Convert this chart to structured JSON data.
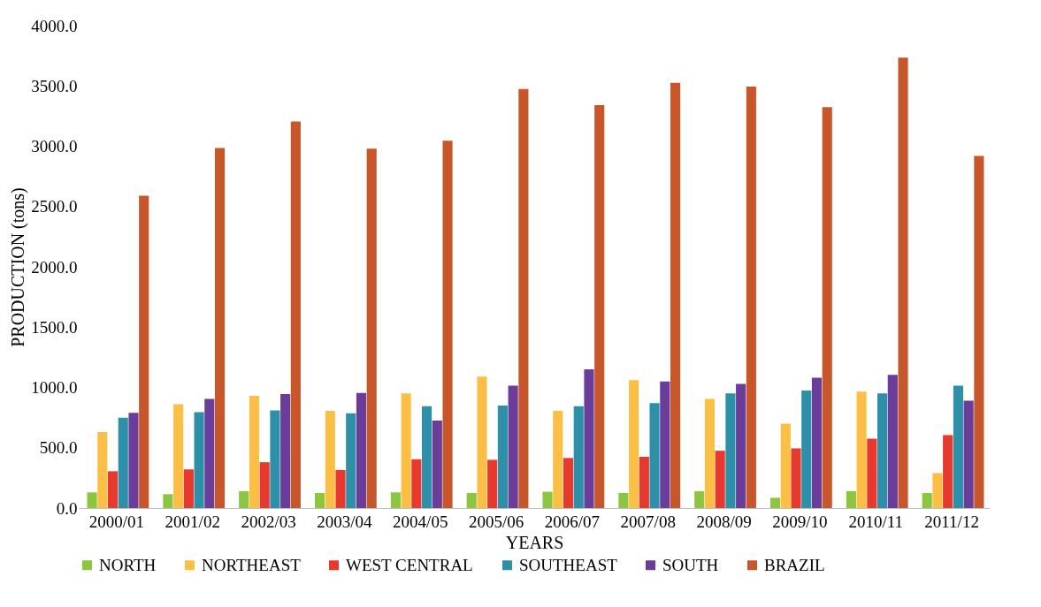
{
  "chart_data": {
    "type": "bar",
    "xlabel": "YEARS",
    "ylabel": "PRODUCTION (tons)",
    "legend": "bottom",
    "grid": false,
    "categories": [
      "2000/01",
      "2001/02",
      "2002/03",
      "2003/04",
      "2004/05",
      "2005/06",
      "2006/07",
      "2007/08",
      "2008/09",
      "2009/10",
      "2010/11",
      "2011/12"
    ],
    "ylim": [
      0,
      4000
    ],
    "yticks": [
      {
        "value": 0,
        "label": "0.0"
      },
      {
        "value": 500,
        "label": "500.0"
      },
      {
        "value": 1000,
        "label": "1000.0"
      },
      {
        "value": 1500,
        "label": "1500.0"
      },
      {
        "value": 2000,
        "label": "2000.0"
      },
      {
        "value": 2500,
        "label": "2500.0"
      },
      {
        "value": 3000,
        "label": "3000.0"
      },
      {
        "value": 3500,
        "label": "3500.0"
      },
      {
        "value": 4000,
        "label": "4000.0"
      }
    ],
    "series": [
      {
        "name": "NORTH",
        "color": "#8cc641",
        "values": [
          130,
          115,
          140,
          125,
          130,
          125,
          135,
          125,
          140,
          85,
          140,
          125
        ]
      },
      {
        "name": "NORTHEAST",
        "color": "#fbbf45",
        "values": [
          630,
          860,
          930,
          805,
          950,
          1090,
          805,
          1060,
          905,
          700,
          965,
          290
        ]
      },
      {
        "name": "WEST CENTRAL",
        "color": "#e8392f",
        "values": [
          305,
          320,
          380,
          315,
          405,
          400,
          415,
          425,
          475,
          495,
          575,
          605
        ]
      },
      {
        "name": "SOUTHEAST",
        "color": "#2e8fa8",
        "values": [
          750,
          795,
          810,
          785,
          845,
          850,
          845,
          870,
          950,
          975,
          950,
          1015
        ]
      },
      {
        "name": "SOUTH",
        "color": "#6a3d9a",
        "values": [
          790,
          905,
          945,
          955,
          725,
          1015,
          1150,
          1050,
          1030,
          1080,
          1105,
          890
        ]
      },
      {
        "name": "BRAZIL",
        "color": "#c8562b",
        "values": [
          2590,
          2985,
          3205,
          2980,
          3045,
          3475,
          3340,
          3525,
          3495,
          3325,
          3735,
          2920
        ]
      }
    ]
  }
}
